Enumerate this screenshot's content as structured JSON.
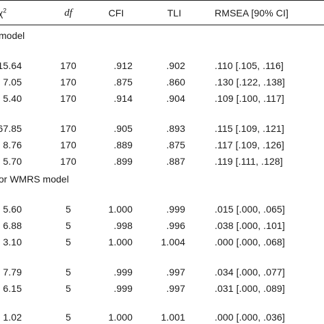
{
  "table": {
    "headers": {
      "chi_symbol": "χ",
      "chi_exponent": "2",
      "df": "df",
      "cfi": "CFI",
      "tli": "TLI",
      "rmsea": "RMSEA [90% CI]"
    },
    "sections": [
      {
        "label": "model",
        "groups": [
          [
            {
              "chi": "15.64",
              "df": "170",
              "cfi": ".912",
              "tli": ".902",
              "rmsea": ".110 [.105, .116]"
            },
            {
              "chi": "7.05",
              "df": "170",
              "cfi": ".875",
              "tli": ".860",
              "rmsea": ".130 [.122, .138]"
            },
            {
              "chi": "5.40",
              "df": "170",
              "cfi": ".914",
              "tli": ".904",
              "rmsea": ".109 [.100, .117]"
            }
          ],
          [
            {
              "chi": "67.85",
              "df": "170",
              "cfi": ".905",
              "tli": ".893",
              "rmsea": ".115 [.109, .121]"
            },
            {
              "chi": "8.76",
              "df": "170",
              "cfi": ".889",
              "tli": ".875",
              "rmsea": ".117 [.109, .126]"
            },
            {
              "chi": "5.70",
              "df": "170",
              "cfi": ".899",
              "tli": ".887",
              "rmsea": ".119 [.111, .128]"
            }
          ]
        ]
      },
      {
        "label": "or WMRS model",
        "groups": [
          [
            {
              "chi": "5.60",
              "df": "5",
              "cfi": "1.000",
              "tli": ".999",
              "rmsea": ".015 [.000, .065]"
            },
            {
              "chi": "6.88",
              "df": "5",
              "cfi": ".998",
              "tli": ".996",
              "rmsea": ".038 [.000, .101]"
            },
            {
              "chi": "3.10",
              "df": "5",
              "cfi": "1.000",
              "tli": "1.004",
              "rmsea": ".000 [.000, .068]"
            }
          ],
          [
            {
              "chi": "7.79",
              "df": "5",
              "cfi": ".999",
              "tli": ".997",
              "rmsea": ".034 [.000, .077]"
            },
            {
              "chi": "6.15",
              "df": "5",
              "cfi": ".999",
              "tli": ".997",
              "rmsea": ".031 [.000, .089]"
            },
            {
              "chi": "1.02",
              "df": "5",
              "cfi": "1.000",
              "tli": "1.001",
              "rmsea": ".000 [.000, .036]"
            }
          ]
        ]
      }
    ]
  }
}
